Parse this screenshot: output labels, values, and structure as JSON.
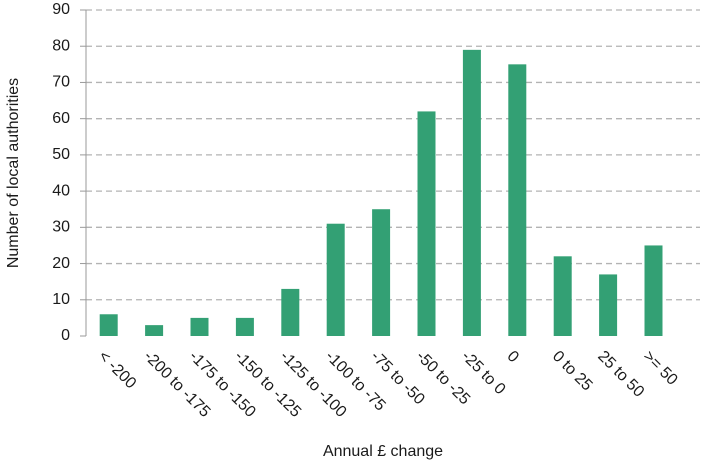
{
  "chart_data": {
    "type": "bar",
    "x_label": "Annual £ change",
    "y_label": "Number of local authorities",
    "categories": [
      "< -200",
      "-200 to -175",
      "-175 to -150",
      "-150 to -125",
      "-125 to -100",
      "-100 to -75",
      "-75 to -50",
      "-50 to -25",
      "-25 to 0",
      "0",
      "0 to 25",
      "25 to 50",
      ">= 50"
    ],
    "values": [
      6,
      3,
      5,
      5,
      13,
      31,
      35,
      62,
      79,
      75,
      22,
      17,
      25
    ],
    "color": "#33a074",
    "ylim": [
      0,
      90
    ],
    "yticks": [
      0,
      10,
      20,
      30,
      40,
      50,
      60,
      70,
      80,
      90
    ],
    "grid": true
  }
}
